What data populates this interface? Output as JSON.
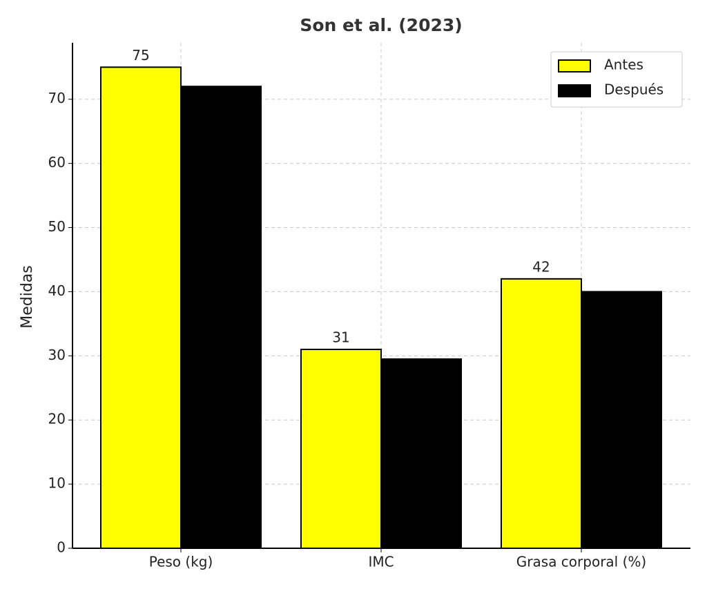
{
  "chart_data": {
    "type": "bar",
    "title": "Son et al. (2023)",
    "y_label": "Medidas",
    "categories": [
      "Peso (kg)",
      "IMC",
      "Grasa corporal (%)"
    ],
    "series": [
      {
        "name": "Antes",
        "color": "#ffff00",
        "values": [
          75,
          31,
          42
        ],
        "show_values": true
      },
      {
        "name": "Después",
        "color": "#000000",
        "values": [
          72,
          29.5,
          40
        ],
        "show_values": false
      }
    ],
    "ylim": [
      0,
      78.8
    ],
    "yticks": [
      0,
      10,
      20,
      30,
      40,
      50,
      60,
      70
    ],
    "grid": true,
    "legend": "upper right"
  }
}
